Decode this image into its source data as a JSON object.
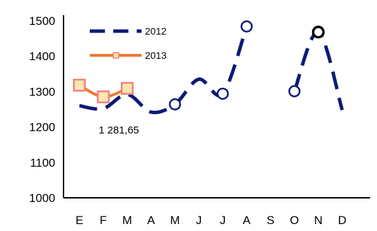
{
  "chart_data": {
    "type": "line",
    "categories": [
      "E",
      "F",
      "M",
      "A",
      "M",
      "J",
      "J",
      "A",
      "S",
      "O",
      "N",
      "D"
    ],
    "ylim": [
      1000,
      1500
    ],
    "yticks": [
      "1000",
      "1100",
      "1200",
      "1300",
      "1400",
      "1500"
    ],
    "series": [
      {
        "name": "2012",
        "color": "#0B1A78",
        "values": [
          1260,
          1252,
          1292,
          1242,
          1264,
          1335,
          1294,
          1484,
          null,
          1301,
          1468,
          1248
        ]
      },
      {
        "name": "2013",
        "color": "#F07830",
        "marker_fill": "#FFE6B0",
        "marker_edge": "#F08080",
        "values": [
          1318,
          1285,
          1309,
          null,
          null,
          null,
          null,
          null,
          null,
          null,
          null,
          null
        ]
      }
    ],
    "annotations": [
      {
        "text": "1 281,65",
        "category_index": 2,
        "value": 1281.65
      }
    ],
    "legend": "top-left"
  }
}
